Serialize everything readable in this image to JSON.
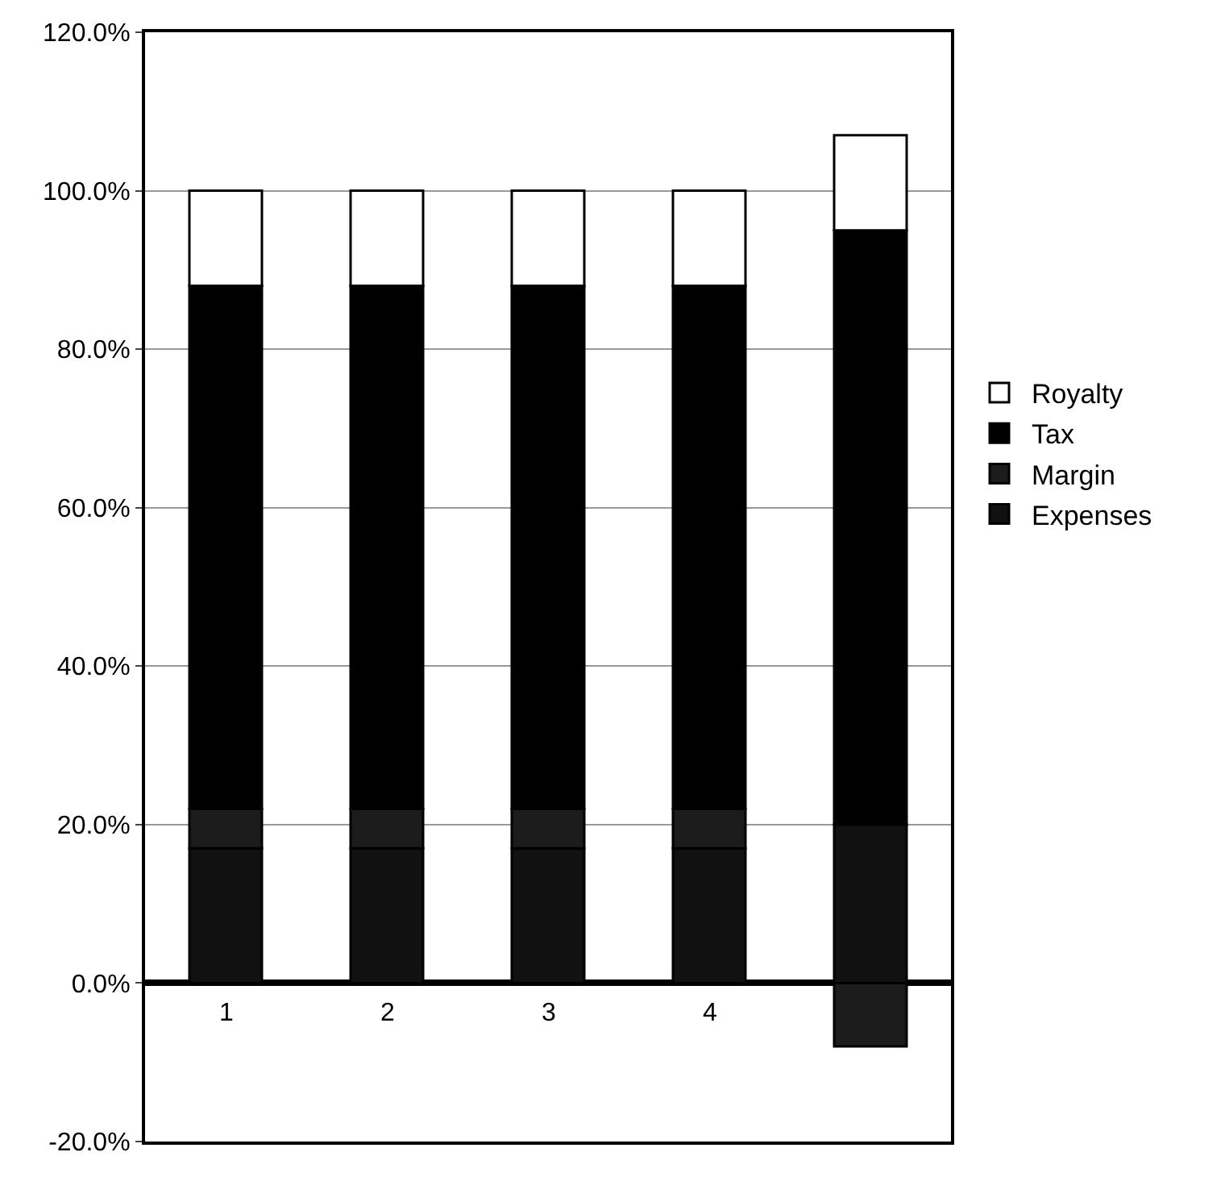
{
  "chart_data": {
    "type": "bar",
    "stacked": true,
    "categories": [
      "1",
      "2",
      "3",
      "4",
      null
    ],
    "series": [
      {
        "name": "Expenses",
        "color": "#111111",
        "values": [
          17,
          17,
          17,
          17,
          20
        ]
      },
      {
        "name": "Margin",
        "color": "#1c1c1c",
        "values": [
          5,
          5,
          5,
          5,
          -8
        ]
      },
      {
        "name": "Tax",
        "color": "#000000",
        "values": [
          66,
          66,
          66,
          66,
          75
        ]
      },
      {
        "name": "Royalty",
        "color": "#ffffff",
        "values": [
          12,
          12,
          12,
          12,
          12
        ]
      }
    ],
    "ylim": [
      -20,
      120
    ],
    "yticks": [
      {
        "value": -20,
        "label": "-20.0%"
      },
      {
        "value": 0,
        "label": "0.0%"
      },
      {
        "value": 20,
        "label": "20.0%"
      },
      {
        "value": 40,
        "label": "40.0%"
      },
      {
        "value": 60,
        "label": "60.0%"
      },
      {
        "value": 80,
        "label": "80.0%"
      },
      {
        "value": 100,
        "label": "100.0%"
      },
      {
        "value": 120,
        "label": "120.0%"
      }
    ],
    "grid": "y",
    "legend": "right"
  }
}
